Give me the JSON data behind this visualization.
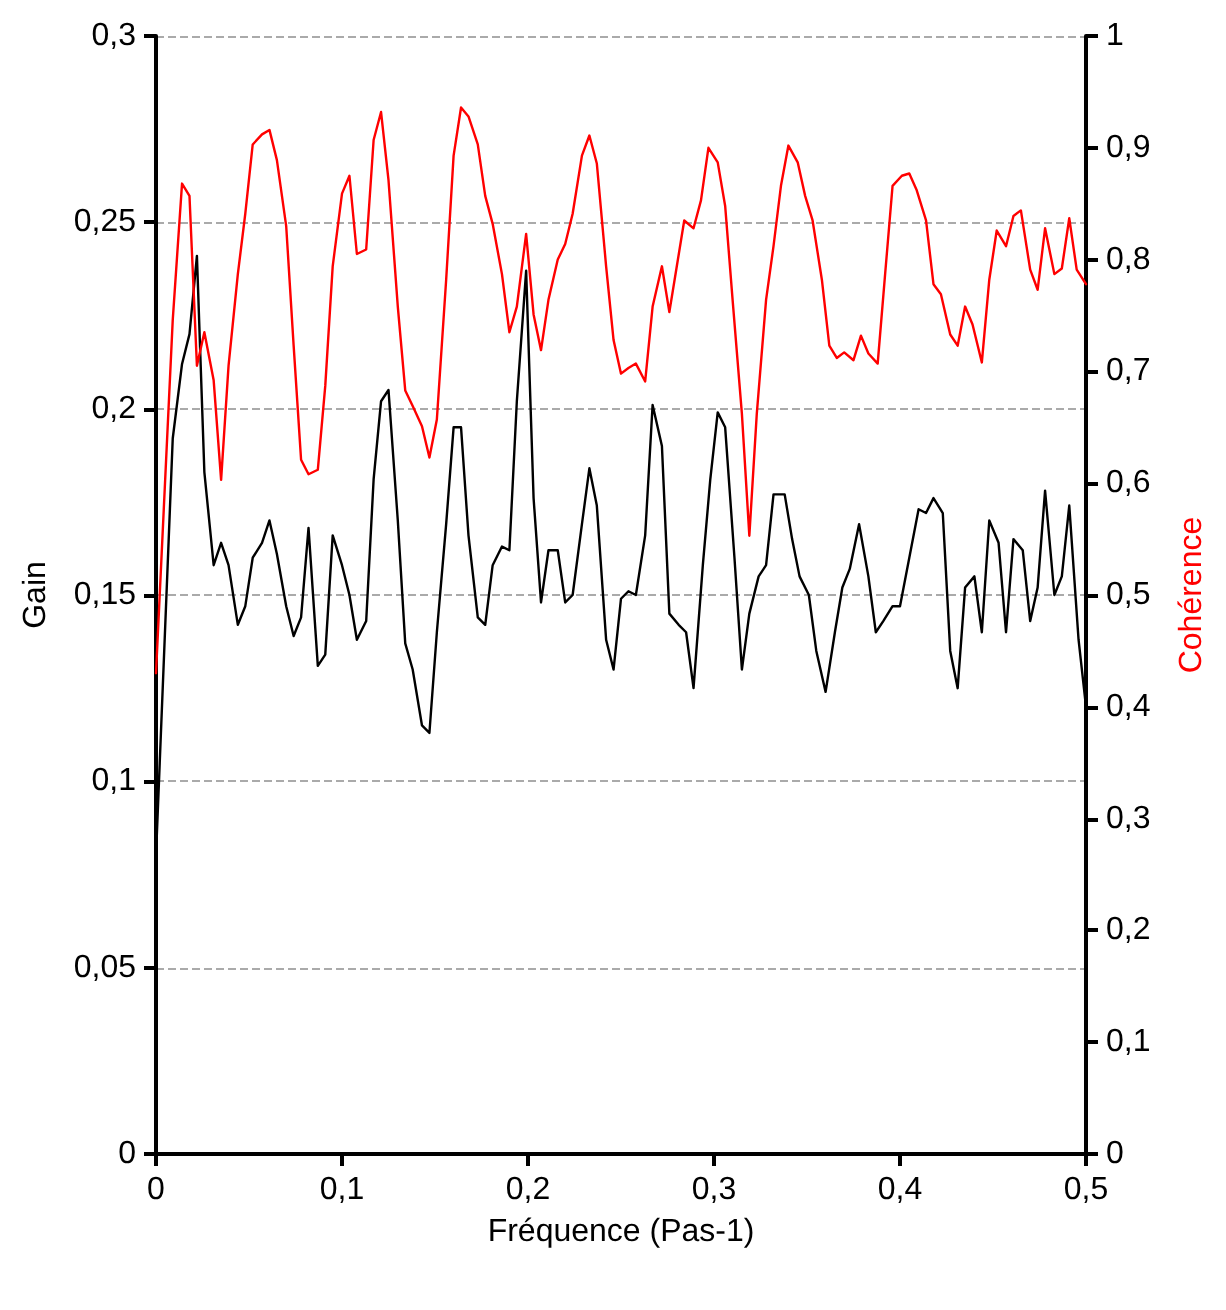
{
  "chart_data": {
    "type": "line",
    "xlabel": "Fréquence (Pas-1)",
    "ylabel": "Gain",
    "y2label": "Cohérence",
    "xlim": [
      0,
      0.5
    ],
    "xticks": [
      0,
      {
        "value": 0.1,
        "label": "0,1"
      },
      {
        "value": 0.2,
        "label": "0,2"
      },
      {
        "value": 0.3,
        "label": "0,3"
      },
      {
        "value": 0.4,
        "label": "0,4"
      },
      {
        "value": 0.5,
        "label": "0,5"
      }
    ],
    "ylim": [
      0,
      0.3
    ],
    "yticks": [
      0,
      {
        "value": 0.05,
        "label": "0,05"
      },
      {
        "value": 0.1,
        "label": "0,1"
      },
      {
        "value": 0.15,
        "label": "0,15"
      },
      {
        "value": 0.2,
        "label": "0,2"
      },
      {
        "value": 0.25,
        "label": "0,25"
      },
      {
        "value": 0.3,
        "label": "0,3"
      }
    ],
    "y2lim": [
      0,
      1
    ],
    "y2ticks": [
      0,
      {
        "value": 0.1,
        "label": "0,1"
      },
      {
        "value": 0.2,
        "label": "0,2"
      },
      {
        "value": 0.3,
        "label": "0,3"
      },
      {
        "value": 0.4,
        "label": "0,4"
      },
      {
        "value": 0.5,
        "label": "0,5"
      },
      {
        "value": 0.6,
        "label": "0,6"
      },
      {
        "value": 0.7,
        "label": "0,7"
      },
      {
        "value": 0.8,
        "label": "0,8"
      },
      {
        "value": 0.9,
        "label": "0,9"
      },
      1
    ],
    "grid": "y",
    "marker": "none",
    "line_style": "solid",
    "series": [
      {
        "color": "#000000",
        "x": [
          0,
          0.009,
          0.014,
          0.018,
          0.022,
          0.026,
          0.031,
          0.035,
          0.039,
          0.044,
          0.048,
          0.052,
          0.057,
          0.061,
          0.065,
          0.07,
          0.074,
          0.078,
          0.082,
          0.087,
          0.091,
          0.095,
          0.1,
          0.104,
          0.108,
          0.113,
          0.117,
          0.121,
          0.125,
          0.13,
          0.134,
          0.138,
          0.143,
          0.147,
          0.151,
          0.156,
          0.16,
          0.164,
          0.168,
          0.173,
          0.177,
          0.181,
          0.186,
          0.19,
          0.194,
          0.199,
          0.203,
          0.207,
          0.211,
          0.216,
          0.22,
          0.224,
          0.229,
          0.233,
          0.237,
          0.242,
          0.246,
          0.25,
          0.254,
          0.258,
          0.263,
          0.267,
          0.272,
          0.276,
          0.281,
          0.285,
          0.289,
          0.294,
          0.298,
          0.302,
          0.306,
          0.311,
          0.315,
          0.319,
          0.324,
          0.328,
          0.332,
          0.338,
          0.342,
          0.346,
          0.351,
          0.355,
          0.36,
          0.365,
          0.369,
          0.373,
          0.378,
          0.383,
          0.387,
          0.391,
          0.396,
          0.4,
          0.405,
          0.41,
          0.414,
          0.418,
          0.423,
          0.427,
          0.431,
          0.435,
          0.44,
          0.444,
          0.448,
          0.453,
          0.457,
          0.461,
          0.466,
          0.47,
          0.474,
          0.478,
          0.483,
          0.487,
          0.491,
          0.496,
          0.5
        ],
        "values": [
          0.08,
          0.192,
          0.212,
          0.22,
          0.241,
          0.183,
          0.158,
          0.164,
          0.158,
          0.142,
          0.147,
          0.16,
          0.164,
          0.17,
          0.161,
          0.147,
          0.139,
          0.144,
          0.168,
          0.131,
          0.134,
          0.166,
          0.158,
          0.15,
          0.138,
          0.143,
          0.181,
          0.202,
          0.205,
          0.17,
          0.137,
          0.13,
          0.115,
          0.113,
          0.14,
          0.169,
          0.195,
          0.195,
          0.166,
          0.144,
          0.142,
          0.158,
          0.163,
          0.162,
          0.202,
          0.237,
          0.176,
          0.148,
          0.162,
          0.162,
          0.148,
          0.15,
          0.169,
          0.184,
          0.174,
          0.138,
          0.13,
          0.149,
          0.151,
          0.15,
          0.166,
          0.201,
          0.19,
          0.145,
          0.142,
          0.14,
          0.125,
          0.158,
          0.181,
          0.199,
          0.195,
          0.16,
          0.13,
          0.145,
          0.155,
          0.158,
          0.177,
          0.177,
          0.165,
          0.155,
          0.15,
          0.135,
          0.124,
          0.14,
          0.152,
          0.157,
          0.169,
          0.155,
          0.14,
          0.143,
          0.147,
          0.147,
          0.16,
          0.173,
          0.172,
          0.176,
          0.172,
          0.135,
          0.125,
          0.152,
          0.155,
          0.14,
          0.17,
          0.164,
          0.14,
          0.165,
          0.162,
          0.143,
          0.152,
          0.178,
          0.15,
          0.155,
          0.174,
          0.138,
          0.12
        ]
      },
      {
        "color": "#ff0000",
        "axis": "y2",
        "x": [
          0,
          0.009,
          0.014,
          0.018,
          0.022,
          0.026,
          0.031,
          0.035,
          0.039,
          0.044,
          0.048,
          0.052,
          0.057,
          0.061,
          0.065,
          0.07,
          0.074,
          0.078,
          0.082,
          0.087,
          0.091,
          0.095,
          0.1,
          0.104,
          0.108,
          0.113,
          0.117,
          0.121,
          0.125,
          0.13,
          0.134,
          0.138,
          0.143,
          0.147,
          0.151,
          0.156,
          0.16,
          0.164,
          0.168,
          0.173,
          0.177,
          0.181,
          0.186,
          0.19,
          0.194,
          0.199,
          0.203,
          0.207,
          0.211,
          0.216,
          0.22,
          0.224,
          0.229,
          0.233,
          0.237,
          0.242,
          0.246,
          0.25,
          0.254,
          0.258,
          0.263,
          0.267,
          0.272,
          0.276,
          0.28,
          0.284,
          0.289,
          0.293,
          0.297,
          0.302,
          0.306,
          0.31,
          0.315,
          0.319,
          0.323,
          0.328,
          0.332,
          0.336,
          0.34,
          0.345,
          0.349,
          0.353,
          0.358,
          0.362,
          0.366,
          0.37,
          0.375,
          0.379,
          0.383,
          0.388,
          0.392,
          0.396,
          0.401,
          0.405,
          0.409,
          0.414,
          0.418,
          0.422,
          0.427,
          0.431,
          0.435,
          0.439,
          0.444,
          0.448,
          0.452,
          0.457,
          0.461,
          0.465,
          0.47,
          0.474,
          0.478,
          0.483,
          0.487,
          0.491,
          0.495,
          0.5
        ],
        "values": [
          0.43,
          0.746,
          0.868,
          0.857,
          0.705,
          0.735,
          0.692,
          0.603,
          0.705,
          0.787,
          0.841,
          0.903,
          0.912,
          0.916,
          0.889,
          0.83,
          0.723,
          0.621,
          0.608,
          0.612,
          0.687,
          0.794,
          0.859,
          0.875,
          0.805,
          0.809,
          0.907,
          0.932,
          0.871,
          0.758,
          0.683,
          0.669,
          0.651,
          0.623,
          0.657,
          0.782,
          0.893,
          0.936,
          0.928,
          0.903,
          0.857,
          0.832,
          0.787,
          0.735,
          0.758,
          0.823,
          0.751,
          0.719,
          0.764,
          0.8,
          0.814,
          0.841,
          0.893,
          0.911,
          0.886,
          0.794,
          0.728,
          0.698,
          0.703,
          0.707,
          0.691,
          0.758,
          0.794,
          0.753,
          0.794,
          0.835,
          0.828,
          0.853,
          0.9,
          0.887,
          0.848,
          0.764,
          0.662,
          0.553,
          0.662,
          0.764,
          0.812,
          0.866,
          0.902,
          0.887,
          0.857,
          0.835,
          0.782,
          0.723,
          0.712,
          0.717,
          0.71,
          0.732,
          0.716,
          0.707,
          0.787,
          0.866,
          0.875,
          0.877,
          0.862,
          0.835,
          0.778,
          0.769,
          0.733,
          0.723,
          0.758,
          0.742,
          0.708,
          0.782,
          0.826,
          0.812,
          0.839,
          0.844,
          0.791,
          0.773,
          0.828,
          0.787,
          0.792,
          0.837,
          0.791,
          0.778
        ]
      }
    ]
  }
}
